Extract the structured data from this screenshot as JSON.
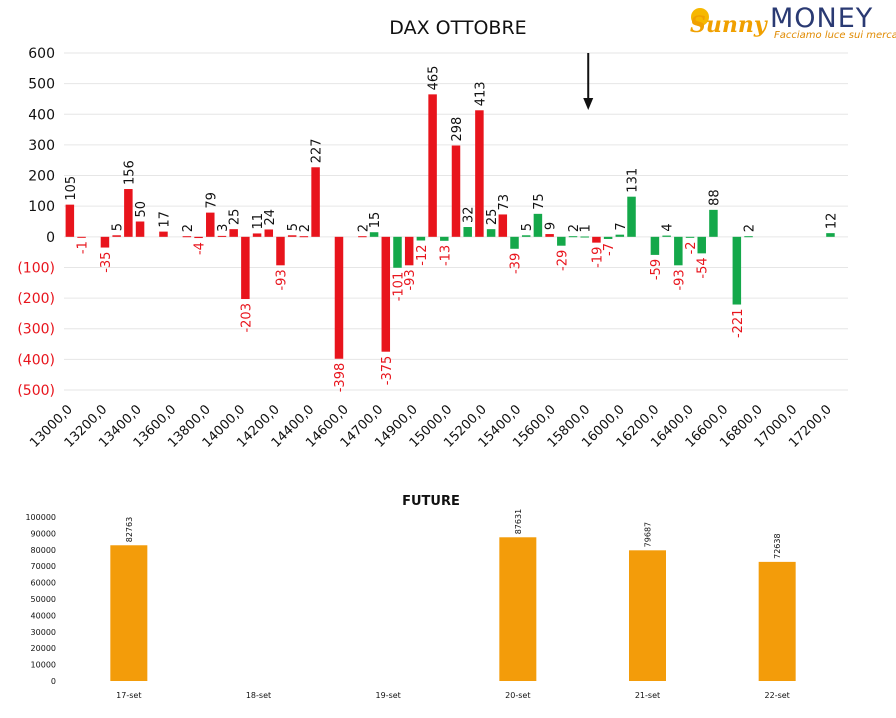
{
  "logo": {
    "script": "Sunny",
    "main": "MONEY",
    "tagline": "Facciamo luce sui mercati"
  },
  "chart_data": [
    {
      "type": "bar",
      "title": "DAX OTTOBRE",
      "ylim": [
        -500,
        600
      ],
      "yticks": [
        600,
        500,
        400,
        300,
        200,
        100,
        0,
        -100,
        -200,
        -300,
        -400,
        -500
      ],
      "ytick_labels": [
        "600",
        "500",
        "400",
        "300",
        "200",
        "100",
        "0",
        "(100)",
        "(200)",
        "(300)",
        "(400)",
        "(500)"
      ],
      "x_tick_labels": [
        "13000,0",
        "13200,0",
        "13400,0",
        "13600,0",
        "13800,0",
        "14000,0",
        "14200,0",
        "14400,0",
        "14600,0",
        "14700,0",
        "14900,0",
        "15000,0",
        "15200,0",
        "15400,0",
        "15600,0",
        "15800,0",
        "16000,0",
        "16200,0",
        "16400,0",
        "16600,0",
        "16800,0",
        "17000,0",
        "17200,0"
      ],
      "grid": true,
      "colors": {
        "red": "#e8141c",
        "green": "#14a84a",
        "negative_label": "#e8141c"
      },
      "arrow_at_slot": 44.3,
      "bars": [
        {
          "slot": 0,
          "value": 105,
          "color": "red"
        },
        {
          "slot": 1,
          "value": -1,
          "color": "red"
        },
        {
          "slot": 3,
          "value": -35,
          "color": "red"
        },
        {
          "slot": 4,
          "value": 5,
          "color": "red"
        },
        {
          "slot": 5,
          "value": 156,
          "color": "red"
        },
        {
          "slot": 6,
          "value": 50,
          "color": "red"
        },
        {
          "slot": 8,
          "value": 17,
          "color": "red"
        },
        {
          "slot": 10,
          "value": 2,
          "color": "red"
        },
        {
          "slot": 11,
          "value": -4,
          "color": "red"
        },
        {
          "slot": 12,
          "value": 79,
          "color": "red"
        },
        {
          "slot": 13,
          "value": 3,
          "color": "red"
        },
        {
          "slot": 14,
          "value": 25,
          "color": "red"
        },
        {
          "slot": 15,
          "value": -203,
          "color": "red"
        },
        {
          "slot": 16,
          "value": 11,
          "color": "red"
        },
        {
          "slot": 17,
          "value": 24,
          "color": "red"
        },
        {
          "slot": 18,
          "value": -93,
          "color": "red"
        },
        {
          "slot": 19,
          "value": 5,
          "color": "red"
        },
        {
          "slot": 20,
          "value": 2,
          "color": "red"
        },
        {
          "slot": 21,
          "value": 227,
          "color": "red"
        },
        {
          "slot": 23,
          "value": -398,
          "color": "red"
        },
        {
          "slot": 25,
          "value": 2,
          "color": "red"
        },
        {
          "slot": 26,
          "value": 15,
          "color": "green"
        },
        {
          "slot": 27,
          "value": -375,
          "color": "red"
        },
        {
          "slot": 28,
          "value": -101,
          "color": "green"
        },
        {
          "slot": 29,
          "value": -93,
          "color": "red"
        },
        {
          "slot": 30,
          "value": -12,
          "color": "green"
        },
        {
          "slot": 31,
          "value": 465,
          "color": "red"
        },
        {
          "slot": 32,
          "value": -13,
          "color": "green"
        },
        {
          "slot": 33,
          "value": 298,
          "color": "red"
        },
        {
          "slot": 34,
          "value": 32,
          "color": "green"
        },
        {
          "slot": 35,
          "value": 413,
          "color": "red"
        },
        {
          "slot": 36,
          "value": 25,
          "color": "green"
        },
        {
          "slot": 37,
          "value": 73,
          "color": "red"
        },
        {
          "slot": 38,
          "value": -39,
          "color": "green"
        },
        {
          "slot": 39,
          "value": 5,
          "color": "green"
        },
        {
          "slot": 40,
          "value": 75,
          "color": "green"
        },
        {
          "slot": 41,
          "value": 9,
          "color": "red"
        },
        {
          "slot": 42,
          "value": -29,
          "color": "green"
        },
        {
          "slot": 43,
          "value": 2,
          "color": "green"
        },
        {
          "slot": 44,
          "value": 1,
          "color": "green"
        },
        {
          "slot": 45,
          "value": -19,
          "color": "red"
        },
        {
          "slot": 46,
          "value": -7,
          "color": "green"
        },
        {
          "slot": 47,
          "value": 7,
          "color": "green"
        },
        {
          "slot": 48,
          "value": 131,
          "color": "green"
        },
        {
          "slot": 50,
          "value": -59,
          "color": "green"
        },
        {
          "slot": 51,
          "value": 4,
          "color": "green"
        },
        {
          "slot": 52,
          "value": -93,
          "color": "green"
        },
        {
          "slot": 53,
          "value": -2,
          "color": "green"
        },
        {
          "slot": 54,
          "value": -54,
          "color": "green"
        },
        {
          "slot": 55,
          "value": 88,
          "color": "green"
        },
        {
          "slot": 57,
          "value": -221,
          "color": "green"
        },
        {
          "slot": 58,
          "value": 2,
          "color": "green"
        },
        {
          "slot": 65,
          "value": 12,
          "color": "green"
        }
      ]
    },
    {
      "type": "bar",
      "title": "FUTURE",
      "ylim": [
        0,
        100000
      ],
      "yticks": [
        0,
        10000,
        20000,
        30000,
        40000,
        50000,
        60000,
        70000,
        80000,
        90000,
        100000
      ],
      "categories": [
        "17-set",
        "18-set",
        "19-set",
        "20-set",
        "21-set",
        "22-set"
      ],
      "values": [
        82763,
        null,
        null,
        87631,
        79687,
        72638
      ],
      "color": "#f39c0a"
    }
  ]
}
